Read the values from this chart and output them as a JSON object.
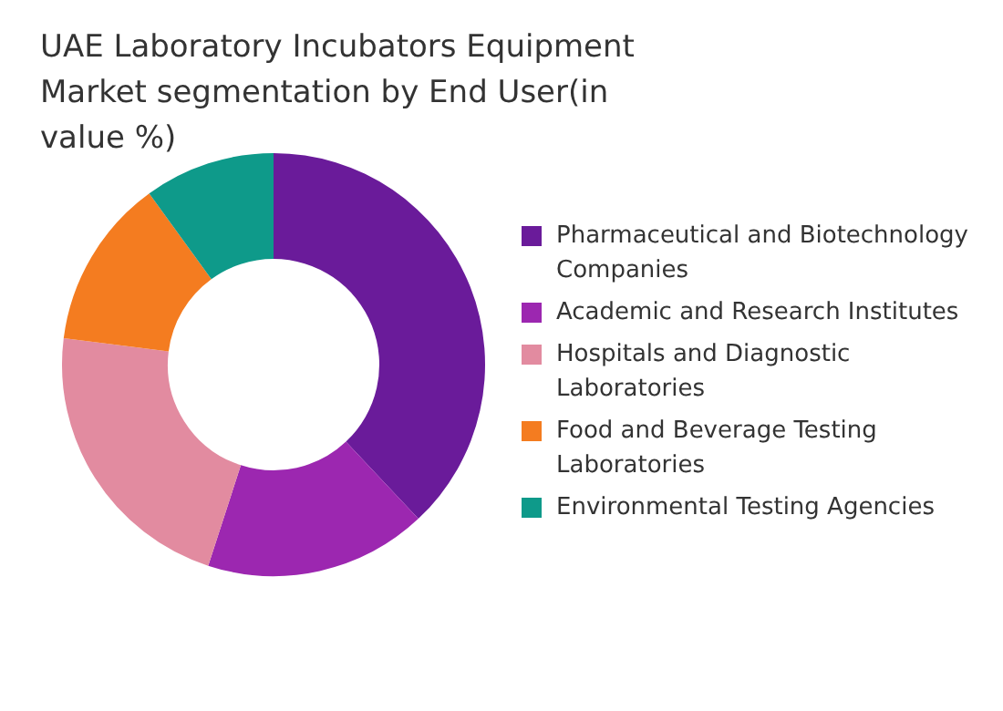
{
  "chart_data": {
    "type": "donut",
    "title": "UAE Laboratory Incubators Equipment Market segmentation by End User(in value %)",
    "categories": [
      "Pharmaceutical and Biotechnology Companies",
      "Academic and Research Institutes",
      "Hospitals and Diagnostic Laboratories",
      "Food and Beverage Testing Laboratories",
      "Environmental Testing Agencies"
    ],
    "values": [
      38,
      17,
      22,
      13,
      10
    ],
    "colors": [
      "#6a1b9a",
      "#9c27b0",
      "#e28ba0",
      "#f47c20",
      "#0e9a8a"
    ],
    "legend": "right"
  }
}
